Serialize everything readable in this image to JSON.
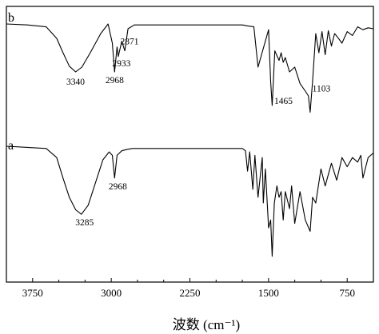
{
  "chart_data": {
    "type": "line",
    "xlabel": "波数 (cm⁻¹)",
    "xlim": [
      4000,
      500
    ],
    "x_reversed": true,
    "xticks": [
      3750,
      3000,
      2250,
      1500,
      750
    ],
    "grid": false,
    "series": [
      {
        "name": "b",
        "x": [
          4000,
          3800,
          3620,
          3520,
          3460,
          3400,
          3340,
          3280,
          3200,
          3100,
          3030,
          2990,
          2968,
          2945,
          2933,
          2900,
          2871,
          2840,
          2780,
          2600,
          2360,
          2200,
          1900,
          1750,
          1700,
          1640,
          1600,
          1500,
          1480,
          1465,
          1440,
          1400,
          1380,
          1360,
          1340,
          1300,
          1250,
          1200,
          1150,
          1120,
          1103,
          1080,
          1050,
          1020,
          990,
          960,
          930,
          900,
          870,
          840,
          800,
          750,
          700,
          650,
          600,
          550,
          500
        ],
        "y": [
          100,
          99,
          97,
          85,
          70,
          56,
          50,
          55,
          70,
          90,
          100,
          80,
          50,
          76,
          66,
          82,
          72,
          95,
          99,
          99,
          99,
          99,
          99,
          99,
          98,
          97,
          55,
          94,
          40,
          15,
          72,
          62,
          70,
          60,
          65,
          50,
          55,
          38,
          30,
          25,
          8,
          40,
          90,
          70,
          92,
          68,
          93,
          77,
          90,
          86,
          80,
          92,
          88,
          97,
          94,
          96,
          95
        ]
      },
      {
        "name": "a",
        "x": [
          4000,
          3800,
          3620,
          3520,
          3460,
          3400,
          3340,
          3285,
          3220,
          3150,
          3080,
          3020,
          2990,
          2968,
          2945,
          2900,
          2860,
          2800,
          2700,
          2500,
          2200,
          1900,
          1750,
          1720,
          1700,
          1680,
          1650,
          1630,
          1600,
          1560,
          1550,
          1530,
          1500,
          1480,
          1465,
          1445,
          1420,
          1400,
          1380,
          1360,
          1340,
          1300,
          1280,
          1250,
          1200,
          1150,
          1103,
          1080,
          1050,
          1000,
          960,
          900,
          850,
          800,
          750,
          700,
          650,
          620,
          600,
          550,
          500
        ],
        "y": [
          100,
          99,
          98,
          90,
          72,
          55,
          44,
          40,
          48,
          68,
          88,
          95,
          92,
          72,
          92,
          96,
          97,
          98,
          98,
          98,
          98,
          98,
          98,
          96,
          78,
          95,
          62,
          92,
          55,
          90,
          50,
          80,
          28,
          35,
          3,
          50,
          65,
          55,
          60,
          35,
          60,
          45,
          65,
          32,
          60,
          35,
          25,
          55,
          50,
          80,
          65,
          85,
          70,
          90,
          82,
          90,
          86,
          92,
          72,
          90,
          94
        ]
      }
    ],
    "annotations": [
      {
        "series": "b",
        "text": "3340",
        "x": 3340
      },
      {
        "series": "b",
        "text": "2968",
        "x": 2968
      },
      {
        "series": "b",
        "text": "2933",
        "x": 2933
      },
      {
        "series": "b",
        "text": "2871",
        "x": 2871
      },
      {
        "series": "b",
        "text": "1465",
        "x": 1465
      },
      {
        "series": "b",
        "text": "1103",
        "x": 1103
      },
      {
        "series": "a",
        "text": "3285",
        "x": 3285
      },
      {
        "series": "a",
        "text": "2968",
        "x": 2968
      }
    ]
  }
}
